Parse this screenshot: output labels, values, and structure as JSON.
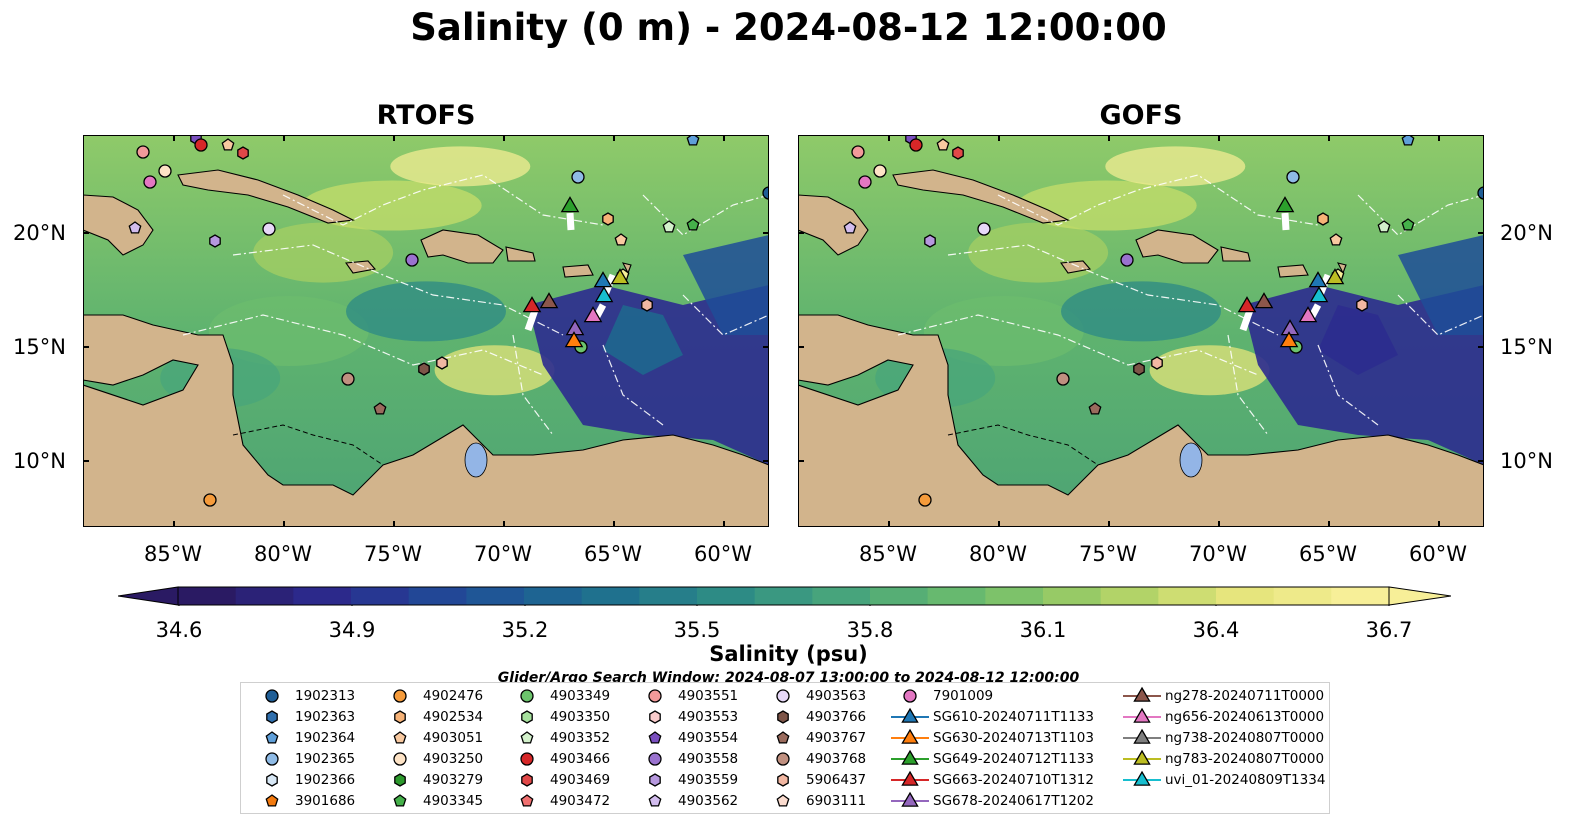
{
  "title": "Salinity (0 m) - 2024-08-12 12:00:00",
  "panels": [
    {
      "title": "RTOFS"
    },
    {
      "title": "GOFS"
    }
  ],
  "axes": {
    "lon_ticks": [
      "85°W",
      "80°W",
      "75°W",
      "70°W",
      "65°W",
      "60°W"
    ],
    "lat_ticks": [
      "20°N",
      "15°N",
      "10°N"
    ]
  },
  "colorbar": {
    "label": "Salinity (psu)",
    "ticks": [
      "34.6",
      "34.9",
      "35.2",
      "35.5",
      "35.8",
      "36.1",
      "36.4",
      "36.7"
    ],
    "range": [
      34.6,
      36.7
    ],
    "extend": "both",
    "colormap_stops": [
      "#2a1a63",
      "#2c2b8f",
      "#1f4e98",
      "#1d6d8f",
      "#2c8a86",
      "#48a57b",
      "#6cbc6d",
      "#a5cf63",
      "#e4e47a",
      "#f7ef98"
    ]
  },
  "search_window": "Glider/Argo Search Window: 2024-08-07 13:00:00 to 2024-08-12 12:00:00",
  "legend": [
    {
      "label": "1902313",
      "marker": "circle",
      "color": "#1f5e96"
    },
    {
      "label": "1902363",
      "marker": "hexagon",
      "color": "#2f6fad"
    },
    {
      "label": "1902364",
      "marker": "pentagon",
      "color": "#5f9fd9"
    },
    {
      "label": "1902365",
      "marker": "circle",
      "color": "#8fbbe6"
    },
    {
      "label": "1902366",
      "marker": "hexagon",
      "color": "#d8e8f6"
    },
    {
      "label": "3901686",
      "marker": "pentagon",
      "color": "#f37a0f"
    },
    {
      "label": "4902476",
      "marker": "circle",
      "color": "#f59b3b"
    },
    {
      "label": "4902534",
      "marker": "hexagon",
      "color": "#f6b277"
    },
    {
      "label": "4903051",
      "marker": "pentagon",
      "color": "#f8c9a0"
    },
    {
      "label": "4903250",
      "marker": "circle",
      "color": "#fde3c6"
    },
    {
      "label": "4903279",
      "marker": "hexagon",
      "color": "#2d9a2d"
    },
    {
      "label": "4903345",
      "marker": "pentagon",
      "color": "#45b04a"
    },
    {
      "label": "4903349",
      "marker": "circle",
      "color": "#6cc46c"
    },
    {
      "label": "4903350",
      "marker": "hexagon",
      "color": "#a6e09d"
    },
    {
      "label": "4903352",
      "marker": "pentagon",
      "color": "#d3f1cb"
    },
    {
      "label": "4903466",
      "marker": "circle",
      "color": "#d62728"
    },
    {
      "label": "4903469",
      "marker": "hexagon",
      "color": "#e14848"
    },
    {
      "label": "4903472",
      "marker": "pentagon",
      "color": "#f07070"
    },
    {
      "label": "4903551",
      "marker": "circle",
      "color": "#f29a9a"
    },
    {
      "label": "4903553",
      "marker": "hexagon",
      "color": "#f9cbcb"
    },
    {
      "label": "4903554",
      "marker": "pentagon",
      "color": "#7a4fbf"
    },
    {
      "label": "4903558",
      "marker": "circle",
      "color": "#9a72cf"
    },
    {
      "label": "4903559",
      "marker": "hexagon",
      "color": "#b698de"
    },
    {
      "label": "4903562",
      "marker": "pentagon",
      "color": "#d3bdef"
    },
    {
      "label": "4903563",
      "marker": "circle",
      "color": "#e7d8f8"
    },
    {
      "label": "4903766",
      "marker": "hexagon",
      "color": "#7d5548"
    },
    {
      "label": "4903767",
      "marker": "pentagon",
      "color": "#9a6b5d"
    },
    {
      "label": "4903768",
      "marker": "circle",
      "color": "#c09080"
    },
    {
      "label": "5906437",
      "marker": "hexagon",
      "color": "#f2b7a2"
    },
    {
      "label": "6903111",
      "marker": "pentagon",
      "color": "#fbdccf"
    },
    {
      "label": "7901009",
      "marker": "circle",
      "color": "#e377c2"
    },
    {
      "label": "SG610-20240711T1133",
      "marker": "triangle-line",
      "color": "#1f77b4"
    },
    {
      "label": "SG630-20240713T1103",
      "marker": "triangle-line",
      "color": "#ff7f0e"
    },
    {
      "label": "SG649-20240712T1133",
      "marker": "triangle-line",
      "color": "#2ca02c"
    },
    {
      "label": "SG663-20240710T1312",
      "marker": "triangle-line",
      "color": "#d62728"
    },
    {
      "label": "SG678-20240617T1202",
      "marker": "triangle-line",
      "color": "#9467bd"
    },
    {
      "label": "ng278-20240711T0000",
      "marker": "triangle-line",
      "color": "#8c564b"
    },
    {
      "label": "ng656-20240613T0000",
      "marker": "triangle-line",
      "color": "#e377c2"
    },
    {
      "label": "ng738-20240807T0000",
      "marker": "triangle-line",
      "color": "#7f7f7f"
    },
    {
      "label": "ng783-20240807T0000",
      "marker": "triangle-line",
      "color": "#bcbd22"
    },
    {
      "label": "uvi_01-20240809T1334",
      "marker": "triangle-line",
      "color": "#17becf"
    }
  ]
}
